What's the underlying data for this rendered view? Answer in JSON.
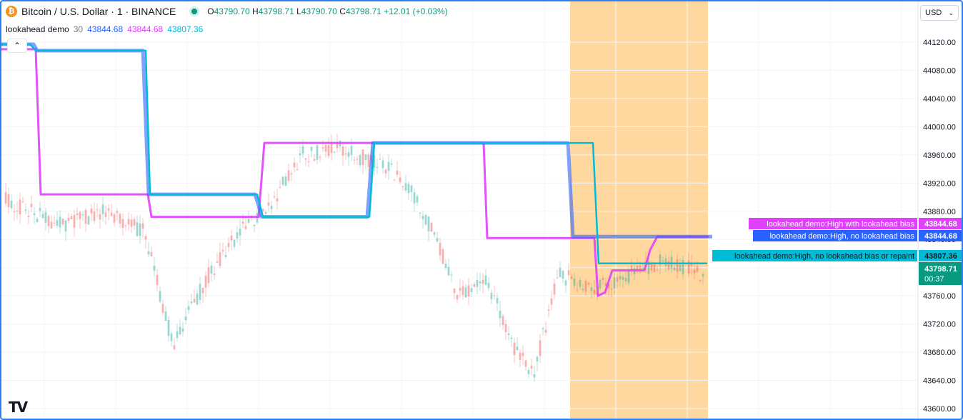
{
  "header": {
    "coin_icon": "bitcoin-icon",
    "symbol": "Bitcoin / U.S. Dollar · 1 · BINANCE",
    "ohlc": {
      "o_label": "O",
      "o": "43790.70",
      "h_label": "H",
      "h": "43798.71",
      "l_label": "L",
      "l": "43790.70",
      "c_label": "C",
      "c": "43798.71",
      "change": "+12.01 (+0.03%)"
    }
  },
  "indicator": {
    "name": "lookahead demo",
    "length": "30",
    "v1": "43844.68",
    "v2": "43844.68",
    "v3": "43807.36"
  },
  "currency": {
    "label": "USD",
    "icon": "chevron-down-icon"
  },
  "colors": {
    "blue": "#2962ff",
    "magenta": "#e040fb",
    "teal": "#00bcd4",
    "highlight": "#ffd8a0",
    "up": "#26a69a",
    "down": "#ef5350",
    "accent": "#2f80ed"
  },
  "chart_data": {
    "type": "line",
    "ylim": [
      43590,
      44150
    ],
    "y_ticks": [
      "44120.00",
      "44080.00",
      "44040.00",
      "44000.00",
      "43960.00",
      "43920.00",
      "43880.00",
      "43840.00",
      "43800.00",
      "43760.00",
      "43720.00",
      "43680.00",
      "43640.00",
      "43600.00"
    ],
    "series": [
      {
        "name": "lookahead demo:High, no lookahead bias",
        "color": "#2962ff",
        "points": [
          [
            0,
            44117
          ],
          [
            45,
            44117
          ],
          [
            50,
            44108
          ],
          [
            198,
            44108
          ],
          [
            206,
            43904
          ],
          [
            355,
            43904
          ],
          [
            365,
            43872
          ],
          [
            512,
            43872
          ],
          [
            520,
            43977
          ],
          [
            793,
            43977
          ],
          [
            800,
            43844
          ],
          [
            995,
            43844
          ]
        ]
      },
      {
        "name": "lookahead demo:High with lookahead bias",
        "color": "#e040fb",
        "points": [
          [
            0,
            44110
          ],
          [
            48,
            44110
          ],
          [
            55,
            43904
          ],
          [
            205,
            43904
          ],
          [
            210,
            43872
          ],
          [
            360,
            43872
          ],
          [
            368,
            43977
          ],
          [
            515,
            43977
          ],
          [
            520,
            43977
          ],
          [
            675,
            43977
          ],
          [
            680,
            43842
          ],
          [
            795,
            43842
          ],
          [
            800,
            43842
          ],
          [
            830,
            43842
          ],
          [
            835,
            43760
          ],
          [
            845,
            43765
          ],
          [
            855,
            43796
          ],
          [
            900,
            43796
          ],
          [
            908,
            43825
          ],
          [
            918,
            43844
          ],
          [
            990,
            43844
          ]
        ]
      },
      {
        "name": "lookahead demo:High, no lookahead bias or repaint",
        "color": "#00bcd4",
        "points": [
          [
            0,
            44117
          ],
          [
            40,
            44117
          ],
          [
            48,
            44108
          ],
          [
            202,
            44108
          ],
          [
            208,
            43904
          ],
          [
            358,
            43904
          ],
          [
            366,
            43872
          ],
          [
            515,
            43872
          ],
          [
            522,
            43977
          ],
          [
            828,
            43977
          ],
          [
            836,
            43806
          ],
          [
            988,
            43806
          ]
        ]
      }
    ],
    "labels": [
      {
        "text": "lookahead demo:High with lookahead bias",
        "value": "43844.68",
        "color": "#e040fb"
      },
      {
        "text": "lookahead demo:High, no lookahead bias",
        "value": "43844.68",
        "color": "#2962ff"
      },
      {
        "text": "lookahead demo:High, no lookahead bias or repaint",
        "value": "43807.36",
        "color": "#00bcd4"
      }
    ],
    "last_price": {
      "value": "43798.71",
      "countdown": "00:37",
      "color": "#089981"
    },
    "candles_seed": 20240101
  },
  "footer": {
    "logo": "tradingview-logo"
  }
}
